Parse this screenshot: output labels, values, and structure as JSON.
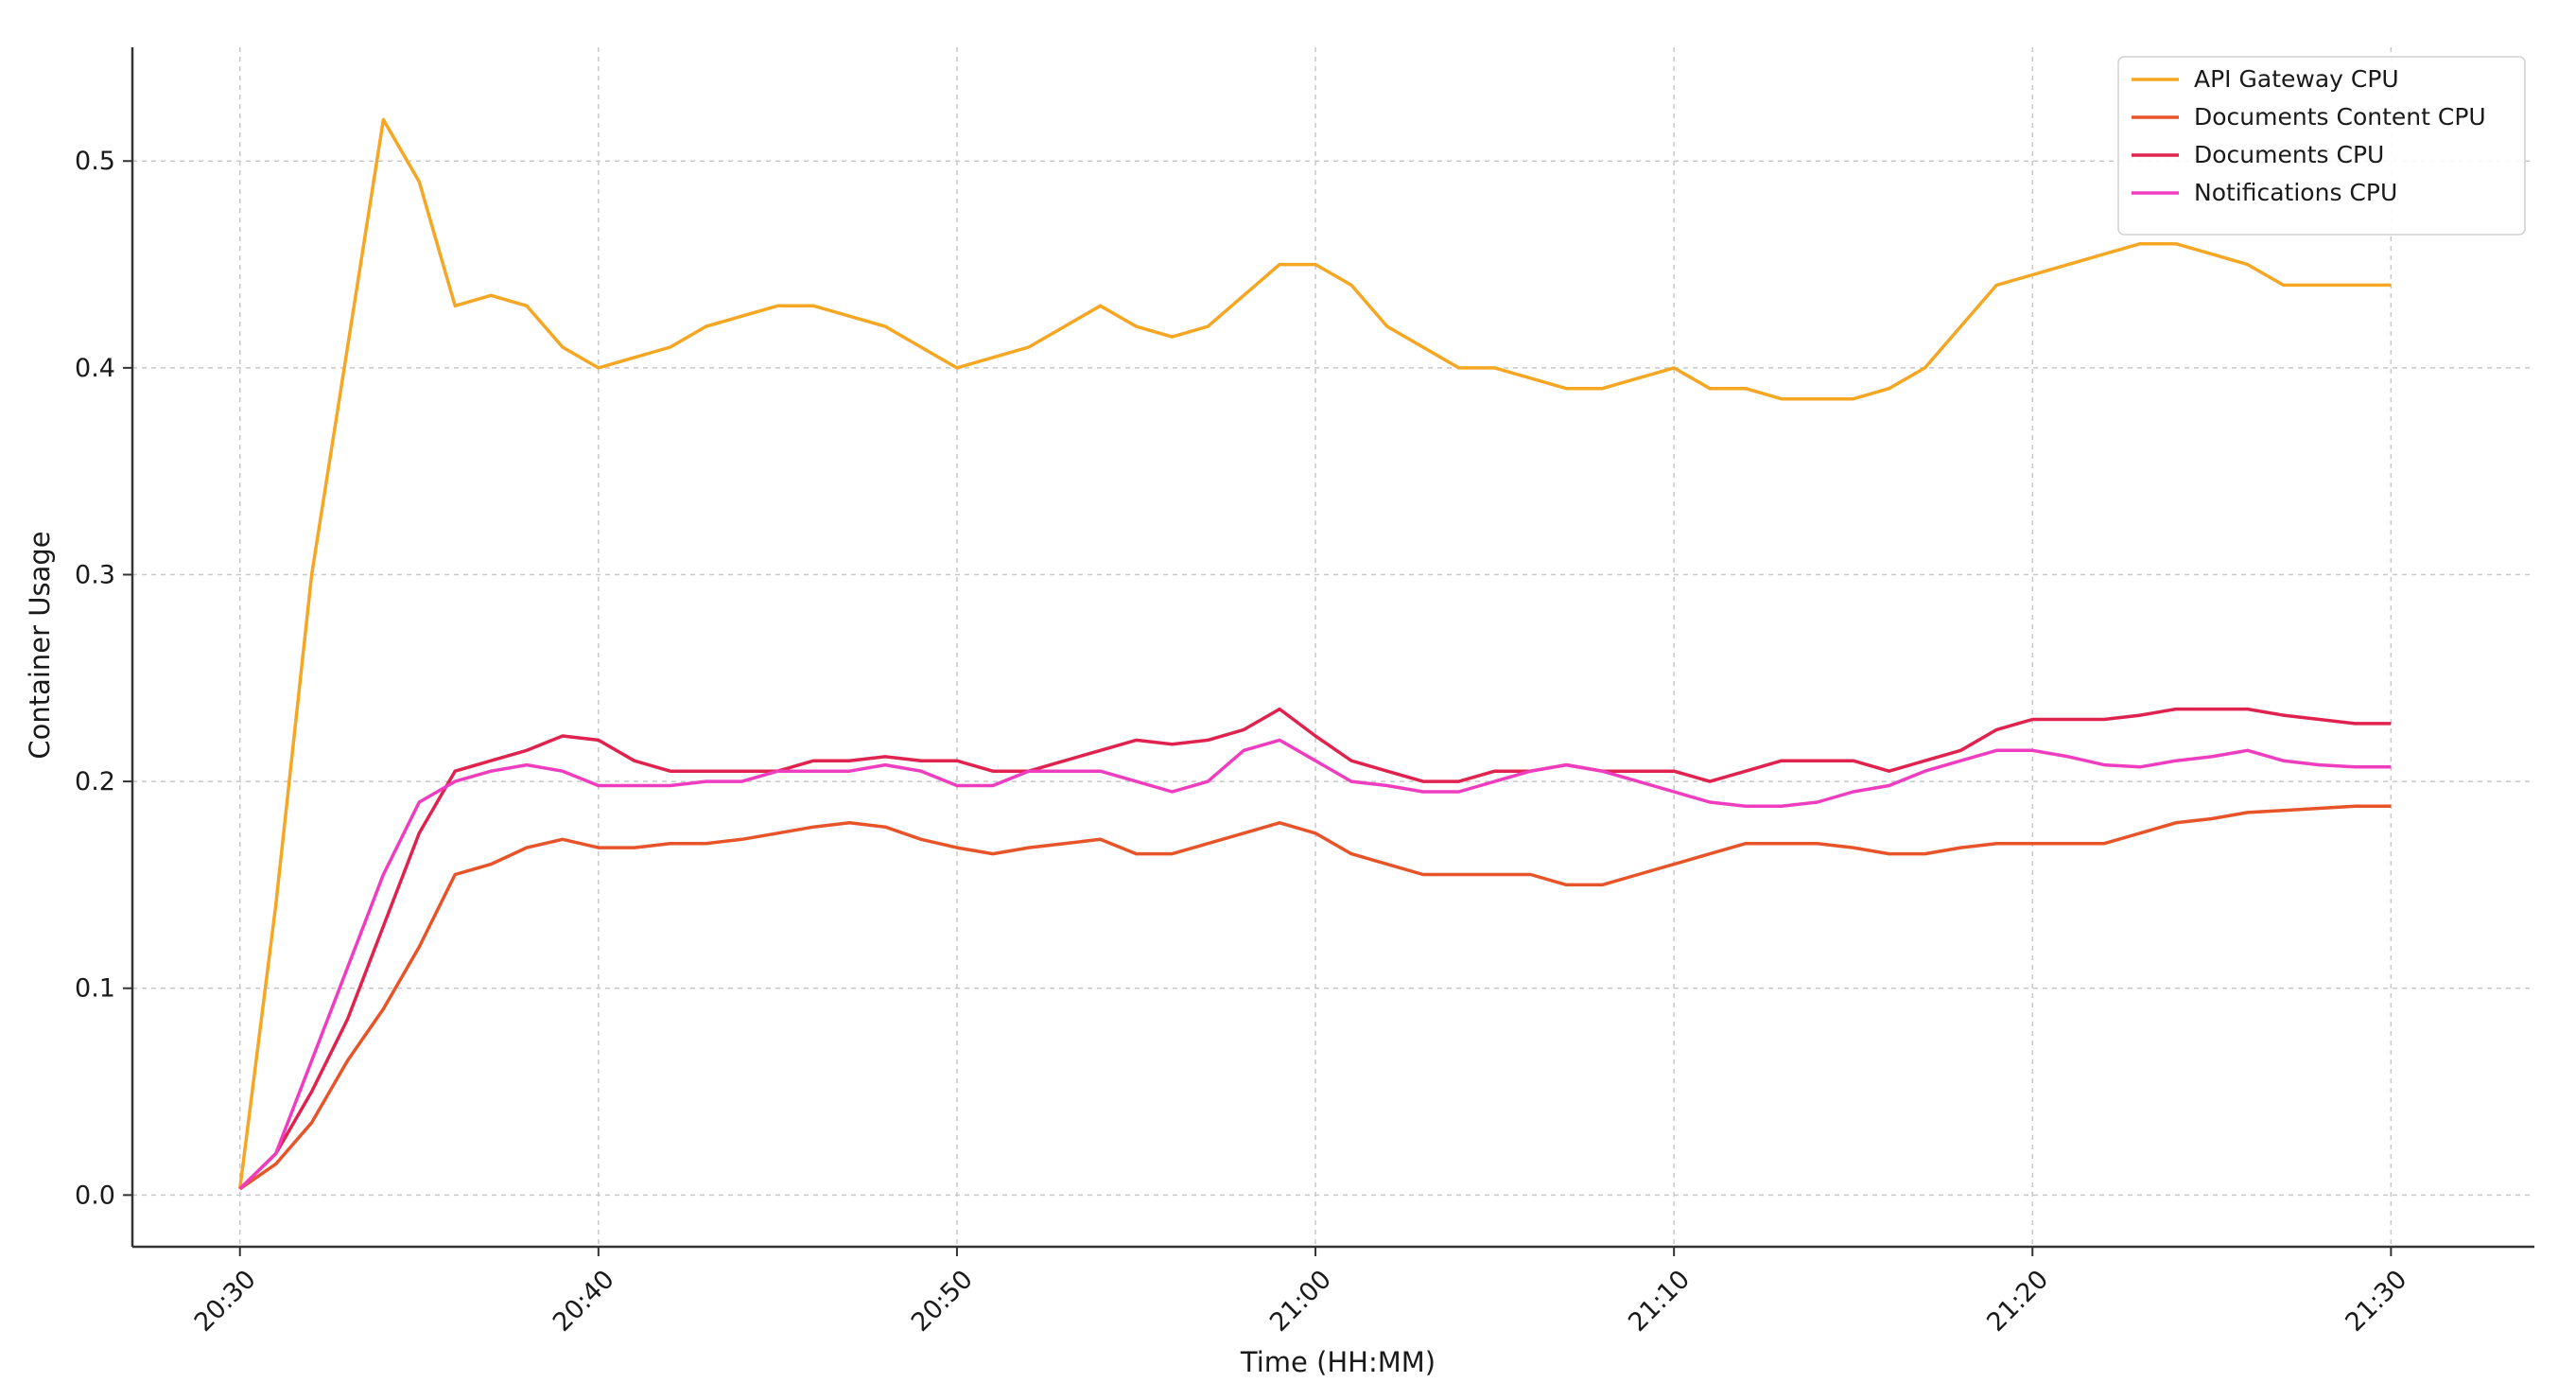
{
  "chart_data": {
    "type": "line",
    "xlabel": "Time (HH:MM)",
    "ylabel": "Container Usage",
    "xticks": [
      "20:30",
      "20:40",
      "20:50",
      "21:00",
      "21:10",
      "21:20",
      "21:30"
    ],
    "yticks": [
      "0.0",
      "0.1",
      "0.2",
      "0.3",
      "0.4",
      "0.5"
    ],
    "x_range_minutes": [
      -3,
      64
    ],
    "ylim": [
      -0.025,
      0.555
    ],
    "grid": true,
    "legend_position": "top-right",
    "x": [
      "20:30",
      "20:31",
      "20:32",
      "20:33",
      "20:34",
      "20:35",
      "20:36",
      "20:37",
      "20:38",
      "20:39",
      "20:40",
      "20:41",
      "20:42",
      "20:43",
      "20:44",
      "20:45",
      "20:46",
      "20:47",
      "20:48",
      "20:49",
      "20:50",
      "20:51",
      "20:52",
      "20:53",
      "20:54",
      "20:55",
      "20:56",
      "20:57",
      "20:58",
      "20:59",
      "21:00",
      "21:01",
      "21:02",
      "21:03",
      "21:04",
      "21:05",
      "21:06",
      "21:07",
      "21:08",
      "21:09",
      "21:10",
      "21:11",
      "21:12",
      "21:13",
      "21:14",
      "21:15",
      "21:16",
      "21:17",
      "21:18",
      "21:19",
      "21:20",
      "21:21",
      "21:22",
      "21:23",
      "21:24",
      "21:25",
      "21:26",
      "21:27",
      "21:28",
      "21:29",
      "21:30"
    ],
    "series": [
      {
        "name": "API Gateway CPU",
        "color": "#f5a623",
        "values": [
          0.003,
          0.14,
          0.3,
          0.41,
          0.52,
          0.49,
          0.43,
          0.435,
          0.43,
          0.41,
          0.4,
          0.405,
          0.41,
          0.42,
          0.425,
          0.43,
          0.43,
          0.425,
          0.42,
          0.41,
          0.4,
          0.405,
          0.41,
          0.42,
          0.43,
          0.42,
          0.415,
          0.42,
          0.435,
          0.45,
          0.45,
          0.44,
          0.42,
          0.41,
          0.4,
          0.4,
          0.395,
          0.39,
          0.39,
          0.395,
          0.4,
          0.39,
          0.39,
          0.385,
          0.385,
          0.385,
          0.39,
          0.4,
          0.42,
          0.44,
          0.445,
          0.45,
          0.455,
          0.46,
          0.46,
          0.455,
          0.45,
          0.44,
          0.44,
          0.44,
          0.44
        ]
      },
      {
        "name": "Documents Content CPU",
        "color": "#e8542a",
        "values": [
          0.003,
          0.015,
          0.035,
          0.065,
          0.09,
          0.12,
          0.155,
          0.16,
          0.168,
          0.172,
          0.168,
          0.168,
          0.17,
          0.17,
          0.172,
          0.175,
          0.178,
          0.18,
          0.178,
          0.172,
          0.168,
          0.165,
          0.168,
          0.17,
          0.172,
          0.165,
          0.165,
          0.17,
          0.175,
          0.18,
          0.175,
          0.165,
          0.16,
          0.155,
          0.155,
          0.155,
          0.155,
          0.15,
          0.15,
          0.155,
          0.16,
          0.165,
          0.17,
          0.17,
          0.17,
          0.168,
          0.165,
          0.165,
          0.168,
          0.17,
          0.17,
          0.17,
          0.17,
          0.175,
          0.18,
          0.182,
          0.185,
          0.186,
          0.187,
          0.188,
          0.188
        ]
      },
      {
        "name": "Documents CPU",
        "color": "#e0234e",
        "values": [
          0.003,
          0.02,
          0.05,
          0.085,
          0.13,
          0.175,
          0.205,
          0.21,
          0.215,
          0.222,
          0.22,
          0.21,
          0.205,
          0.205,
          0.205,
          0.205,
          0.21,
          0.21,
          0.212,
          0.21,
          0.21,
          0.205,
          0.205,
          0.21,
          0.215,
          0.22,
          0.218,
          0.22,
          0.225,
          0.235,
          0.222,
          0.21,
          0.205,
          0.2,
          0.2,
          0.205,
          0.205,
          0.208,
          0.205,
          0.205,
          0.205,
          0.2,
          0.205,
          0.21,
          0.21,
          0.21,
          0.205,
          0.21,
          0.215,
          0.225,
          0.23,
          0.23,
          0.23,
          0.232,
          0.235,
          0.235,
          0.235,
          0.232,
          0.23,
          0.228,
          0.228
        ]
      },
      {
        "name": "Notifications CPU",
        "color": "#ef3dc0",
        "values": [
          0.003,
          0.02,
          0.065,
          0.11,
          0.155,
          0.19,
          0.2,
          0.205,
          0.208,
          0.205,
          0.198,
          0.198,
          0.198,
          0.2,
          0.2,
          0.205,
          0.205,
          0.205,
          0.208,
          0.205,
          0.198,
          0.198,
          0.205,
          0.205,
          0.205,
          0.2,
          0.195,
          0.2,
          0.215,
          0.22,
          0.21,
          0.2,
          0.198,
          0.195,
          0.195,
          0.2,
          0.205,
          0.208,
          0.205,
          0.2,
          0.195,
          0.19,
          0.188,
          0.188,
          0.19,
          0.195,
          0.198,
          0.205,
          0.21,
          0.215,
          0.215,
          0.212,
          0.208,
          0.207,
          0.21,
          0.212,
          0.215,
          0.21,
          0.208,
          0.207,
          0.207
        ]
      }
    ]
  }
}
